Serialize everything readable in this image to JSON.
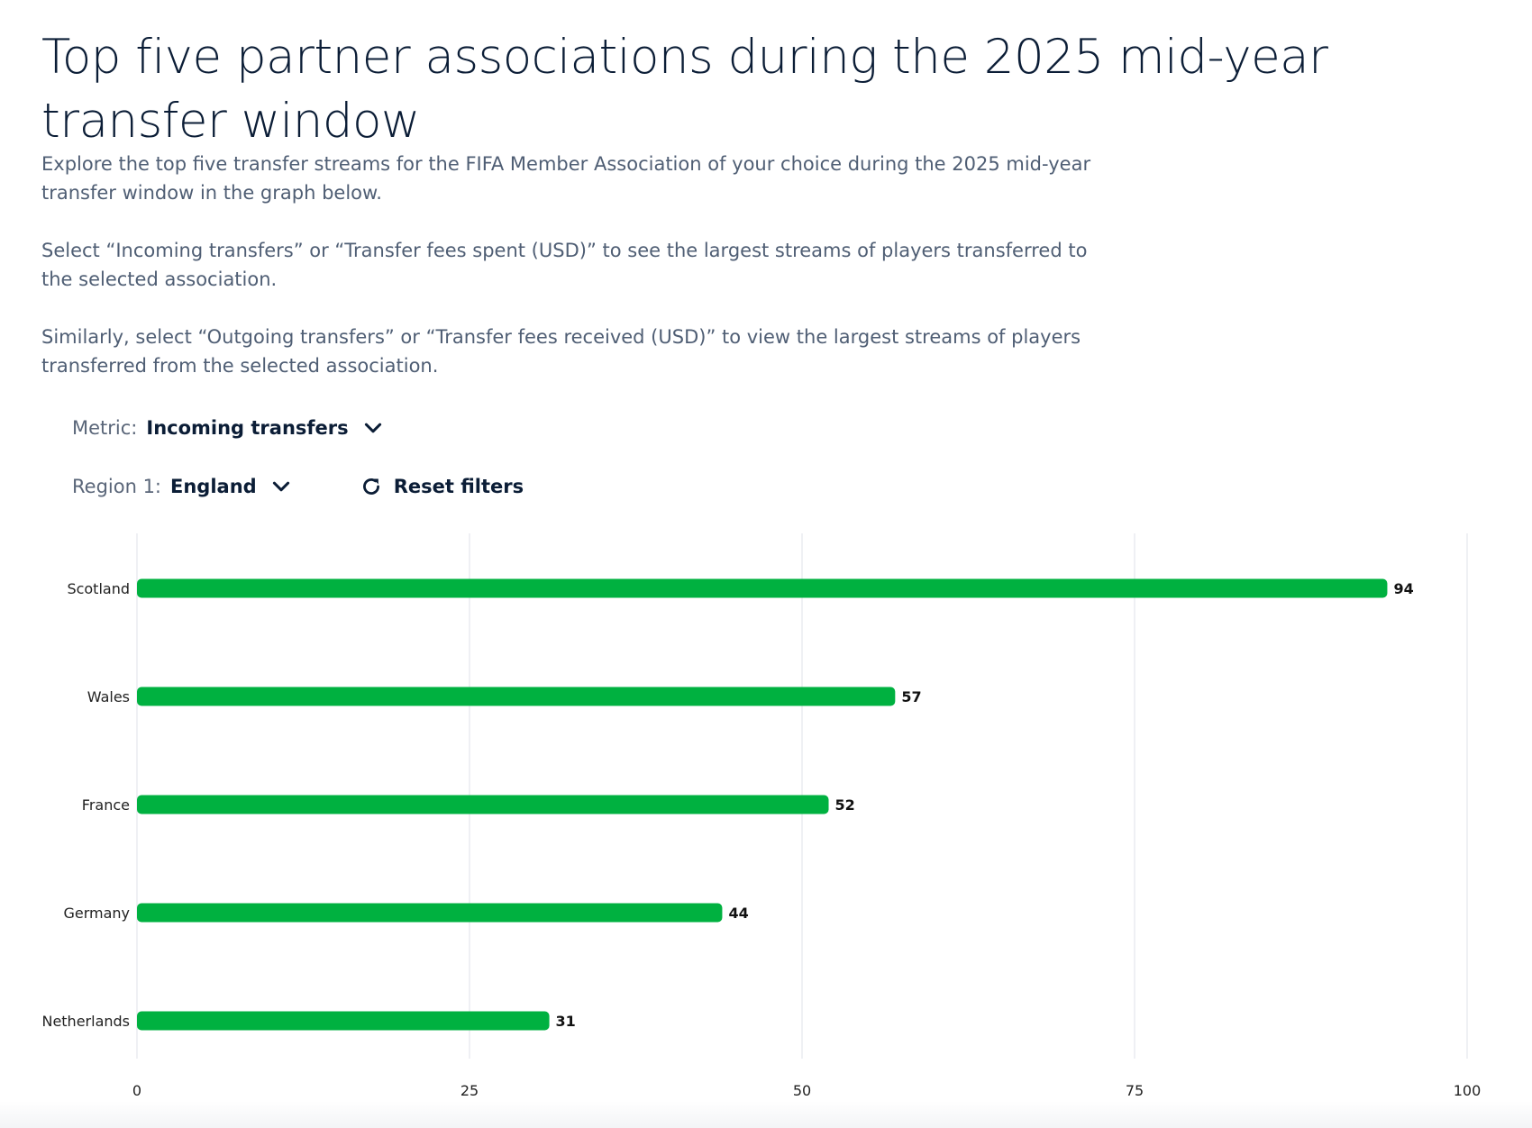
{
  "page": {
    "title": "Top five partner associations during the 2025 mid-year transfer window",
    "intro": [
      "Explore the top five transfer streams for the FIFA Member Association of your choice during the 2025 mid-year transfer window in the graph below.",
      "Select “Incoming transfers” or “Transfer fees spent (USD)” to see the largest streams of players transferred to the selected association.",
      "Similarly, select “Outgoing transfers” or “Transfer fees received (USD)” to view the largest streams of players transferred from the selected association."
    ]
  },
  "filters": {
    "metric_label": "Metric:",
    "metric_value": "Incoming transfers",
    "region_label": "Region 1:",
    "region_value": "England",
    "reset_label": "Reset filters"
  },
  "icons": {
    "metric_dropdown": "chevron-down-icon",
    "region_dropdown": "chevron-down-icon",
    "reset": "refresh-icon"
  },
  "colors": {
    "bar": "#00b140",
    "text": "#0b1d36",
    "muted_text": "#4f5e74",
    "grid": "#e6e9ee"
  },
  "chart_data": {
    "type": "bar",
    "orientation": "horizontal",
    "categories": [
      "Scotland",
      "Wales",
      "France",
      "Germany",
      "Netherlands"
    ],
    "values": [
      94,
      57,
      52,
      44,
      31
    ],
    "data_labels": [
      "94",
      "57",
      "52",
      "44",
      "31"
    ],
    "xlim": [
      0,
      100
    ],
    "xticks": [
      0,
      25,
      50,
      75,
      100
    ],
    "xtick_labels": [
      "0",
      "25",
      "50",
      "75",
      "100"
    ],
    "grid": true,
    "title": "",
    "xlabel": "",
    "ylabel": ""
  }
}
